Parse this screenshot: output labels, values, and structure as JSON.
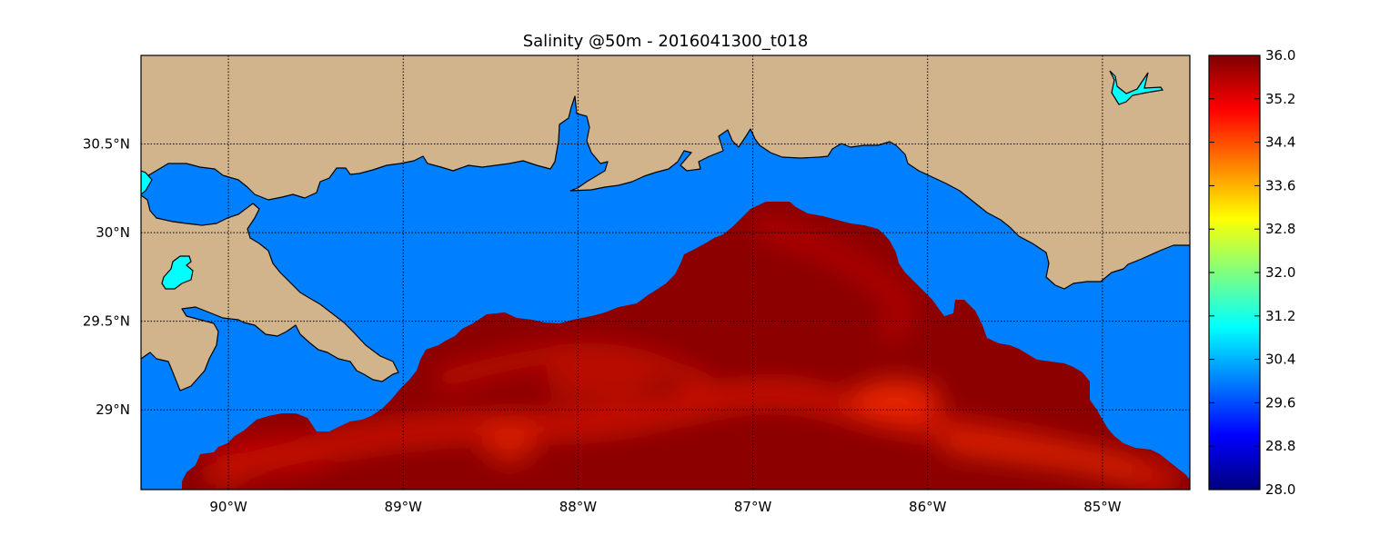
{
  "title": "Salinity @50m - 2016041300_t018",
  "map": {
    "lon_range": [
      -90.5,
      -84.5
    ],
    "lat_range": [
      28.55,
      31.0
    ],
    "lon_ticks": [
      {
        "value": -90,
        "label": "90°W"
      },
      {
        "value": -89,
        "label": "89°W"
      },
      {
        "value": -88,
        "label": "88°W"
      },
      {
        "value": -87,
        "label": "87°W"
      },
      {
        "value": -86,
        "label": "86°W"
      },
      {
        "value": -85,
        "label": "85°W"
      }
    ],
    "lat_ticks": [
      {
        "value": 29.0,
        "label": "29°N"
      },
      {
        "value": 29.5,
        "label": "29.5°N"
      },
      {
        "value": 30.0,
        "label": "30°N"
      },
      {
        "value": 30.5,
        "label": "30.5°N"
      }
    ],
    "grid": true,
    "colors": {
      "land": "#d2b48c",
      "coastal_water": "#0080ff",
      "lake_water": "#00ffff",
      "offshore_water": "#8c0000",
      "offshore_highlight": "#cc0800"
    }
  },
  "colorbar": {
    "colormap": "jet",
    "min": 28.0,
    "max": 36.0,
    "ticks": [
      "28.0",
      "28.8",
      "29.6",
      "30.4",
      "31.2",
      "32.0",
      "32.8",
      "33.6",
      "34.4",
      "35.2",
      "36.0"
    ]
  }
}
